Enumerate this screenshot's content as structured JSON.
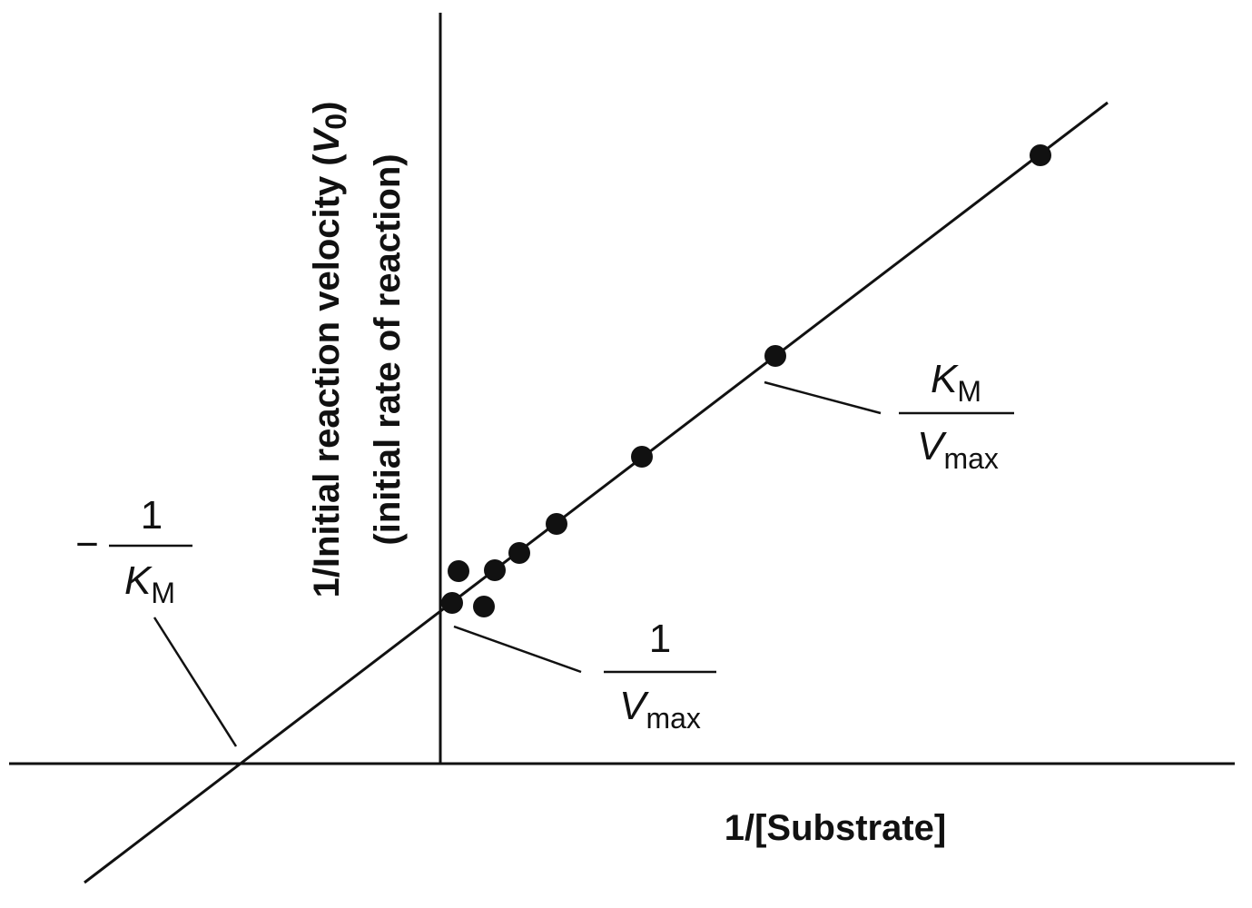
{
  "axes": {
    "x_label": "1/[Substrate]",
    "y_label": {
      "line1_prefix": "1/Initial reaction velocity (",
      "symbol": "V",
      "subscript": "0",
      "line1_suffix": ")",
      "line2": "(initial rate of reaction)"
    }
  },
  "annotations": [
    {
      "sign": "−",
      "numerator": "1",
      "denominator_symbol": "K",
      "denominator_subscript": "M"
    },
    {
      "numerator": "1",
      "denominator_symbol": "V",
      "denominator_subscript": "max"
    },
    {
      "numerator_symbol": "K",
      "numerator_subscript": "M",
      "denominator_symbol": "V",
      "denominator_subscript": "max"
    }
  ]
}
